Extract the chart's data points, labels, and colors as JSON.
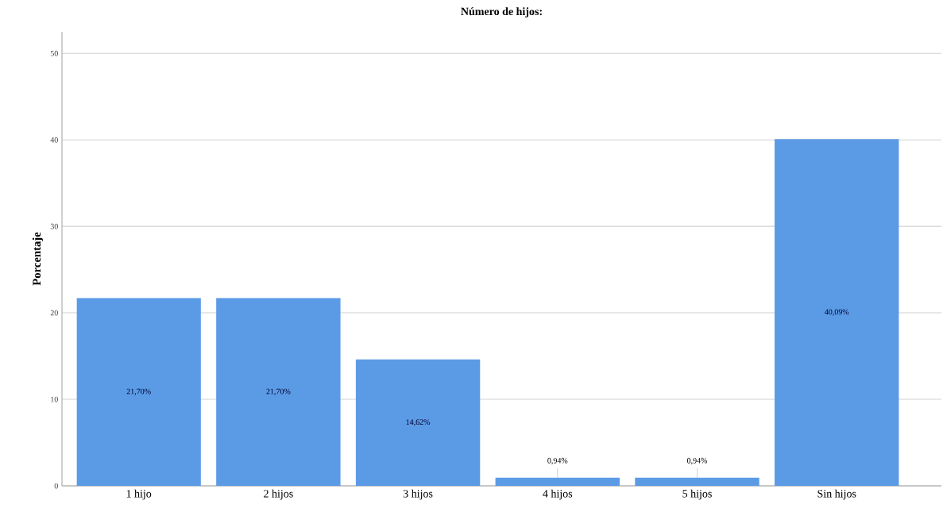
{
  "chart_data": {
    "type": "bar",
    "title": "Número de hijos:",
    "ylabel": "Porcentaje",
    "categories": [
      "1 hijo",
      "2 hijos",
      "3 hijos",
      "4 hijos",
      "5 hijos",
      "Sin hijos"
    ],
    "values": [
      21.7,
      21.7,
      14.62,
      0.94,
      0.94,
      40.09
    ],
    "value_labels": [
      "21,70%",
      "21,70%",
      "14,62%",
      "0,94%",
      "0,94%",
      "40,09%"
    ],
    "color": "#5b9be6",
    "ylim": [
      0,
      52.5
    ],
    "yticks": [
      0,
      10,
      20,
      30,
      40,
      50
    ],
    "grid": "y"
  }
}
